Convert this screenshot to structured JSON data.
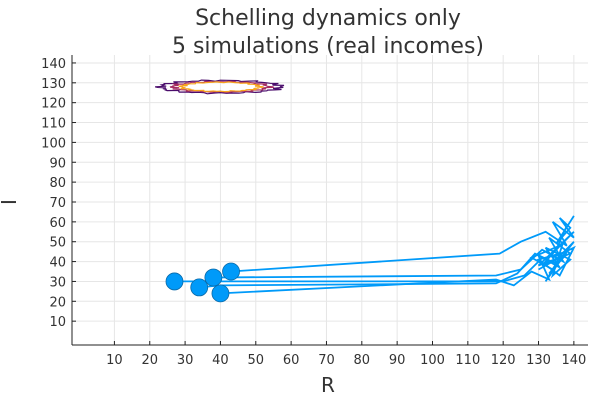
{
  "chart_data": {
    "type": "line",
    "title": [
      "Schelling dynamics only",
      "5 simulations (real incomes)"
    ],
    "xlabel": "R",
    "ylabel": "I",
    "xlim": [
      -2,
      144
    ],
    "ylim": [
      -2,
      144
    ],
    "xticks": [
      10,
      20,
      30,
      40,
      50,
      60,
      70,
      80,
      90,
      100,
      110,
      120,
      130,
      140
    ],
    "yticks": [
      10,
      20,
      30,
      40,
      50,
      60,
      70,
      80,
      90,
      100,
      110,
      120,
      130,
      140
    ],
    "grid": true,
    "line_color": "#009af9",
    "simulations": [
      {
        "start": [
          27,
          30
        ],
        "path": [
          [
            27,
            30
          ],
          [
            33,
            30
          ],
          [
            120,
            30
          ],
          [
            126,
            33
          ],
          [
            130,
            40
          ],
          [
            134,
            36
          ],
          [
            128,
            42
          ],
          [
            136,
            48
          ],
          [
            131,
            38
          ],
          [
            138,
            44
          ],
          [
            133,
            34
          ],
          [
            140,
            50
          ],
          [
            135,
            41
          ],
          [
            130,
            36
          ]
        ]
      },
      {
        "start": [
          34,
          27
        ],
        "path": [
          [
            34,
            27
          ],
          [
            40,
            28
          ],
          [
            118,
            29
          ],
          [
            124,
            34
          ],
          [
            129,
            44
          ],
          [
            135,
            39
          ],
          [
            132,
            30
          ],
          [
            138,
            45
          ],
          [
            130,
            41
          ],
          [
            136,
            33
          ],
          [
            140,
            47
          ],
          [
            134,
            42
          ]
        ]
      },
      {
        "start": [
          38,
          32
        ],
        "path": [
          [
            38,
            32
          ],
          [
            118,
            33
          ],
          [
            125,
            36
          ],
          [
            131,
            46
          ],
          [
            137,
            40
          ],
          [
            133,
            52
          ],
          [
            139,
            44
          ],
          [
            130,
            38
          ],
          [
            140,
            55
          ],
          [
            135,
            46
          ],
          [
            138,
            58
          ]
        ]
      },
      {
        "start": [
          40,
          24
        ],
        "path": [
          [
            40,
            24
          ],
          [
            118,
            31
          ],
          [
            123,
            28
          ],
          [
            128,
            35
          ],
          [
            133,
            31
          ],
          [
            130,
            43
          ],
          [
            136,
            37
          ],
          [
            132,
            47
          ],
          [
            139,
            41
          ],
          [
            134,
            33
          ],
          [
            137,
            50
          ]
        ]
      },
      {
        "start": [
          43,
          35
        ],
        "path": [
          [
            43,
            35
          ],
          [
            119,
            44
          ],
          [
            125,
            50
          ],
          [
            132,
            55
          ],
          [
            138,
            48
          ],
          [
            134,
            60
          ],
          [
            140,
            52
          ],
          [
            136,
            62
          ],
          [
            139,
            57
          ],
          [
            135,
            49
          ],
          [
            140,
            63
          ]
        ]
      }
    ],
    "contour": {
      "center": [
        40,
        128
      ],
      "levels": [
        {
          "rx": 17,
          "ry": 3.2,
          "color": "#4a0c6b"
        },
        {
          "rx": 13.5,
          "ry": 2.6,
          "color": "#a52c60"
        },
        {
          "rx": 11,
          "ry": 2.3,
          "color": "#f7a41c"
        }
      ]
    }
  }
}
